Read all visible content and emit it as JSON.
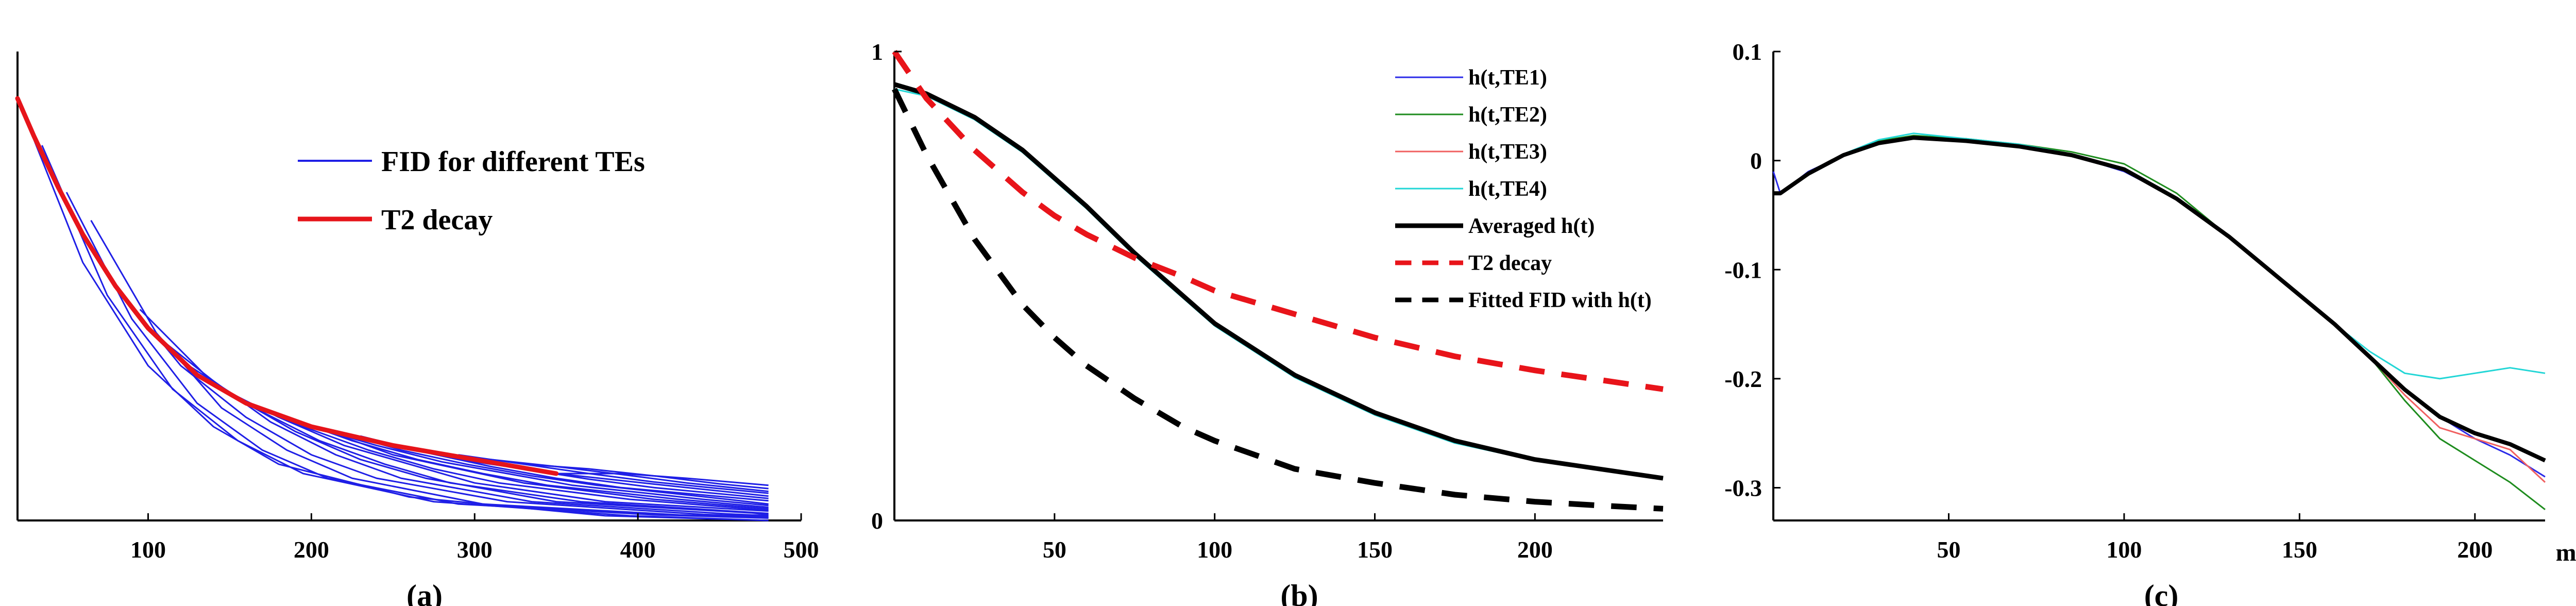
{
  "panels": {
    "a": {
      "label": "(a)"
    },
    "b": {
      "label": "(b)"
    },
    "c": {
      "label": "(c)"
    }
  },
  "chart_data": [
    {
      "id": "a",
      "type": "line",
      "title": "",
      "xlabel": "",
      "ylabel": "",
      "xlim": [
        20,
        500
      ],
      "ylim": [
        0,
        1
      ],
      "xticks": [
        100,
        200,
        300,
        400,
        500
      ],
      "xtick_labels": [
        "100",
        "200",
        "300",
        "400",
        "500"
      ],
      "yticks": [],
      "grid": false,
      "legend_position": "upper-right",
      "legend": [
        {
          "label": "FID for different TEs",
          "color": "#1f1fe6",
          "dash": "solid"
        },
        {
          "label": "T2 decay",
          "color": "#e6141a",
          "dash": "solid"
        }
      ],
      "fid_start_times": [
        20,
        35,
        50,
        65,
        80,
        95,
        110,
        125,
        140,
        155,
        170,
        185,
        200,
        215,
        230,
        245,
        260,
        275,
        290,
        305,
        320,
        335,
        350
      ],
      "fid_end_time": 480,
      "t2_decay": {
        "name": "T2 decay",
        "x": [
          20,
          30,
          45,
          60,
          80,
          100,
          130,
          160,
          200,
          250,
          300,
          350
        ],
        "y": [
          0.9,
          0.82,
          0.71,
          0.61,
          0.5,
          0.41,
          0.31,
          0.25,
          0.2,
          0.16,
          0.13,
          0.1
        ]
      },
      "fid_curves": [
        {
          "x": [
            20,
            60,
            100,
            140,
            180,
            260,
            380,
            480
          ],
          "y": [
            0.9,
            0.55,
            0.33,
            0.2,
            0.12,
            0.05,
            0.01,
            0.0
          ]
        },
        {
          "x": [
            35,
            75,
            115,
            155,
            195,
            275,
            395,
            480
          ],
          "y": [
            0.8,
            0.48,
            0.28,
            0.17,
            0.1,
            0.04,
            0.01,
            0.0
          ]
        },
        {
          "x": [
            50,
            90,
            130,
            170,
            210,
            290,
            410,
            480
          ],
          "y": [
            0.7,
            0.43,
            0.25,
            0.15,
            0.09,
            0.035,
            0.012,
            0.005
          ]
        },
        {
          "x": [
            65,
            105,
            145,
            185,
            225,
            305,
            425,
            480
          ],
          "y": [
            0.64,
            0.4,
            0.24,
            0.15,
            0.09,
            0.035,
            0.012,
            0.006
          ]
        },
        {
          "x": [
            80,
            120,
            160,
            200,
            240,
            320,
            440,
            480
          ],
          "y": [
            0.5,
            0.33,
            0.22,
            0.14,
            0.09,
            0.04,
            0.013,
            0.008
          ]
        },
        {
          "x": [
            95,
            135,
            175,
            215,
            255,
            335,
            455,
            480
          ],
          "y": [
            0.45,
            0.31,
            0.21,
            0.14,
            0.09,
            0.04,
            0.014,
            0.01
          ]
        },
        {
          "x": [
            110,
            150,
            190,
            230,
            270,
            350,
            470,
            480
          ],
          "y": [
            0.38,
            0.27,
            0.19,
            0.13,
            0.09,
            0.04,
            0.016,
            0.012
          ]
        },
        {
          "x": [
            125,
            165,
            205,
            245,
            285,
            365,
            480
          ],
          "y": [
            0.33,
            0.24,
            0.17,
            0.12,
            0.08,
            0.04,
            0.015
          ]
        },
        {
          "x": [
            140,
            180,
            220,
            260,
            300,
            380,
            480
          ],
          "y": [
            0.29,
            0.22,
            0.16,
            0.12,
            0.08,
            0.04,
            0.02
          ]
        },
        {
          "x": [
            155,
            195,
            235,
            275,
            315,
            395,
            480
          ],
          "y": [
            0.26,
            0.2,
            0.15,
            0.11,
            0.08,
            0.045,
            0.022
          ]
        },
        {
          "x": [
            170,
            210,
            250,
            290,
            330,
            410,
            480
          ],
          "y": [
            0.24,
            0.19,
            0.14,
            0.11,
            0.08,
            0.045,
            0.025
          ]
        },
        {
          "x": [
            185,
            225,
            265,
            305,
            345,
            425,
            480
          ],
          "y": [
            0.22,
            0.17,
            0.13,
            0.1,
            0.075,
            0.045,
            0.028
          ]
        },
        {
          "x": [
            200,
            240,
            280,
            320,
            360,
            440,
            480
          ],
          "y": [
            0.2,
            0.16,
            0.125,
            0.1,
            0.075,
            0.045,
            0.032
          ]
        },
        {
          "x": [
            215,
            255,
            295,
            335,
            375,
            455,
            480
          ],
          "y": [
            0.19,
            0.15,
            0.12,
            0.095,
            0.075,
            0.045,
            0.035
          ]
        },
        {
          "x": [
            230,
            270,
            310,
            350,
            390,
            470,
            480
          ],
          "y": [
            0.18,
            0.145,
            0.115,
            0.09,
            0.07,
            0.045,
            0.042
          ]
        },
        {
          "x": [
            250,
            290,
            330,
            370,
            410,
            480
          ],
          "y": [
            0.16,
            0.13,
            0.11,
            0.088,
            0.07,
            0.047
          ]
        },
        {
          "x": [
            270,
            310,
            350,
            390,
            430,
            480
          ],
          "y": [
            0.15,
            0.125,
            0.1,
            0.085,
            0.07,
            0.052
          ]
        },
        {
          "x": [
            290,
            330,
            370,
            410,
            450,
            480
          ],
          "y": [
            0.14,
            0.12,
            0.1,
            0.082,
            0.068,
            0.058
          ]
        },
        {
          "x": [
            310,
            350,
            390,
            430,
            480
          ],
          "y": [
            0.13,
            0.115,
            0.098,
            0.08,
            0.062
          ]
        },
        {
          "x": [
            330,
            370,
            410,
            450,
            480
          ],
          "y": [
            0.12,
            0.11,
            0.095,
            0.078,
            0.068
          ]
        },
        {
          "x": [
            350,
            390,
            430,
            470,
            480
          ],
          "y": [
            0.1,
            0.1,
            0.09,
            0.078,
            0.075
          ]
        }
      ]
    },
    {
      "id": "b",
      "type": "line",
      "title": "",
      "xlabel": "",
      "ylabel": "",
      "xlim": [
        0,
        240
      ],
      "ylim": [
        0,
        1
      ],
      "xticks": [
        50,
        100,
        150,
        200
      ],
      "xtick_labels": [
        "50",
        "100",
        "150",
        "200"
      ],
      "yticks": [
        0,
        1
      ],
      "ytick_labels": [
        "0",
        "1"
      ],
      "grid": false,
      "legend_position": "upper-right",
      "series": [
        {
          "name": "h(t,TE1)",
          "color": "#2a2ae8",
          "dash": "solid",
          "width": 3,
          "x": [
            0,
            10,
            25,
            40,
            50,
            60,
            75,
            90,
            100,
            125,
            150,
            175,
            200,
            220,
            240
          ],
          "y": [
            0.93,
            0.91,
            0.86,
            0.79,
            0.73,
            0.67,
            0.57,
            0.48,
            0.42,
            0.31,
            0.23,
            0.17,
            0.13,
            0.11,
            0.09
          ]
        },
        {
          "name": "h(t,TE2)",
          "color": "#1e8c1e",
          "dash": "solid",
          "width": 3,
          "x": [
            0,
            10,
            25,
            40,
            50,
            60,
            75,
            90,
            100,
            125,
            150,
            175,
            200,
            220,
            240
          ],
          "y": [
            0.93,
            0.91,
            0.86,
            0.79,
            0.73,
            0.67,
            0.57,
            0.48,
            0.42,
            0.31,
            0.23,
            0.17,
            0.13,
            0.11,
            0.09
          ]
        },
        {
          "name": "h(t,TE3)",
          "color": "#f06060",
          "dash": "solid",
          "width": 3,
          "x": [
            0,
            10,
            25,
            40,
            50,
            60,
            75,
            90,
            100,
            125,
            150,
            175,
            200,
            220,
            240
          ],
          "y": [
            0.93,
            0.91,
            0.86,
            0.79,
            0.73,
            0.67,
            0.57,
            0.48,
            0.42,
            0.31,
            0.23,
            0.17,
            0.13,
            0.11,
            0.09
          ]
        },
        {
          "name": "h(t,TE4)",
          "color": "#22d6d6",
          "dash": "solid",
          "width": 3,
          "x": [
            0,
            10,
            25,
            40,
            50,
            60,
            75,
            90,
            100,
            125,
            150,
            175,
            200,
            220,
            240
          ],
          "y": [
            0.92,
            0.905,
            0.855,
            0.785,
            0.725,
            0.665,
            0.565,
            0.475,
            0.415,
            0.305,
            0.225,
            0.165,
            0.128,
            0.108,
            0.09
          ]
        },
        {
          "name": "Averaged h(t)",
          "color": "#000000",
          "dash": "solid",
          "width": 9,
          "x": [
            0,
            10,
            25,
            40,
            50,
            60,
            75,
            90,
            100,
            125,
            150,
            175,
            200,
            220,
            240
          ],
          "y": [
            0.93,
            0.91,
            0.86,
            0.79,
            0.73,
            0.67,
            0.57,
            0.48,
            0.42,
            0.31,
            0.23,
            0.17,
            0.13,
            0.11,
            0.09
          ]
        },
        {
          "name": "T2 decay",
          "color": "#e8141a",
          "dash": "dashed",
          "width": 11,
          "x": [
            0,
            10,
            25,
            40,
            50,
            60,
            75,
            90,
            100,
            125,
            150,
            175,
            200,
            220,
            240
          ],
          "y": [
            1.0,
            0.9,
            0.79,
            0.7,
            0.65,
            0.61,
            0.56,
            0.52,
            0.49,
            0.44,
            0.39,
            0.35,
            0.32,
            0.3,
            0.28
          ]
        },
        {
          "name": "Fitted FID with h(t)",
          "color": "#000000",
          "dash": "dashed",
          "width": 11,
          "x": [
            0,
            10,
            25,
            40,
            50,
            60,
            75,
            90,
            100,
            125,
            150,
            175,
            200,
            220,
            240
          ],
          "y": [
            0.92,
            0.78,
            0.6,
            0.46,
            0.39,
            0.33,
            0.26,
            0.2,
            0.17,
            0.11,
            0.08,
            0.055,
            0.04,
            0.032,
            0.025
          ]
        }
      ]
    },
    {
      "id": "c",
      "type": "line",
      "title": "",
      "xlabel": "ms",
      "ylabel": "",
      "xlim": [
        0,
        220
      ],
      "ylim": [
        -0.33,
        0.1
      ],
      "xticks": [
        50,
        100,
        150,
        200
      ],
      "xtick_labels": [
        "50",
        "100",
        "150",
        "200"
      ],
      "yticks": [
        0.1,
        0,
        -0.1,
        -0.2,
        -0.3
      ],
      "ytick_labels": [
        "0.1",
        "0",
        "-0.1",
        "-0.2",
        "-0.3"
      ],
      "grid": false,
      "series": [
        {
          "name": "",
          "color": "#2a2ae8",
          "dash": "solid",
          "width": 3,
          "x": [
            0,
            2,
            10,
            20,
            30,
            40,
            55,
            70,
            85,
            100,
            115,
            130,
            145,
            160,
            170,
            180,
            190,
            200,
            210,
            220
          ],
          "y": [
            -0.01,
            -0.03,
            -0.01,
            0.005,
            0.015,
            0.02,
            0.018,
            0.012,
            0.005,
            -0.01,
            -0.035,
            -0.07,
            -0.11,
            -0.15,
            -0.18,
            -0.21,
            -0.235,
            -0.255,
            -0.27,
            -0.29
          ]
        },
        {
          "name": "",
          "color": "#1e8c1e",
          "dash": "solid",
          "width": 3,
          "x": [
            0,
            2,
            10,
            20,
            30,
            40,
            55,
            70,
            85,
            100,
            115,
            130,
            145,
            160,
            170,
            180,
            190,
            200,
            210,
            220
          ],
          "y": [
            -0.03,
            -0.03,
            -0.012,
            0.005,
            0.018,
            0.023,
            0.02,
            0.015,
            0.008,
            -0.003,
            -0.03,
            -0.07,
            -0.11,
            -0.15,
            -0.18,
            -0.22,
            -0.255,
            -0.275,
            -0.295,
            -0.32
          ]
        },
        {
          "name": "",
          "color": "#f06060",
          "dash": "solid",
          "width": 3,
          "x": [
            0,
            2,
            10,
            20,
            30,
            40,
            55,
            70,
            85,
            100,
            115,
            130,
            145,
            160,
            170,
            180,
            190,
            200,
            210,
            220
          ],
          "y": [
            -0.03,
            -0.03,
            -0.012,
            0.005,
            0.017,
            0.022,
            0.019,
            0.014,
            0.006,
            -0.008,
            -0.035,
            -0.07,
            -0.11,
            -0.15,
            -0.18,
            -0.215,
            -0.245,
            -0.255,
            -0.265,
            -0.295
          ]
        },
        {
          "name": "",
          "color": "#22d6d6",
          "dash": "solid",
          "width": 3,
          "x": [
            0,
            2,
            10,
            20,
            30,
            40,
            55,
            70,
            85,
            100,
            115,
            130,
            145,
            160,
            170,
            180,
            190,
            200,
            210,
            220
          ],
          "y": [
            -0.03,
            -0.03,
            -0.012,
            0.006,
            0.019,
            0.025,
            0.02,
            0.015,
            0.006,
            -0.008,
            -0.035,
            -0.07,
            -0.11,
            -0.15,
            -0.175,
            -0.195,
            -0.2,
            -0.195,
            -0.19,
            -0.195
          ]
        },
        {
          "name": "",
          "color": "#000000",
          "dash": "solid",
          "width": 8,
          "x": [
            0,
            2,
            10,
            20,
            30,
            40,
            55,
            70,
            85,
            100,
            115,
            130,
            145,
            160,
            170,
            180,
            190,
            200,
            210,
            220
          ],
          "y": [
            -0.03,
            -0.03,
            -0.012,
            0.005,
            0.016,
            0.021,
            0.018,
            0.013,
            0.005,
            -0.008,
            -0.035,
            -0.07,
            -0.11,
            -0.15,
            -0.18,
            -0.21,
            -0.235,
            -0.25,
            -0.26,
            -0.275
          ]
        }
      ]
    }
  ]
}
